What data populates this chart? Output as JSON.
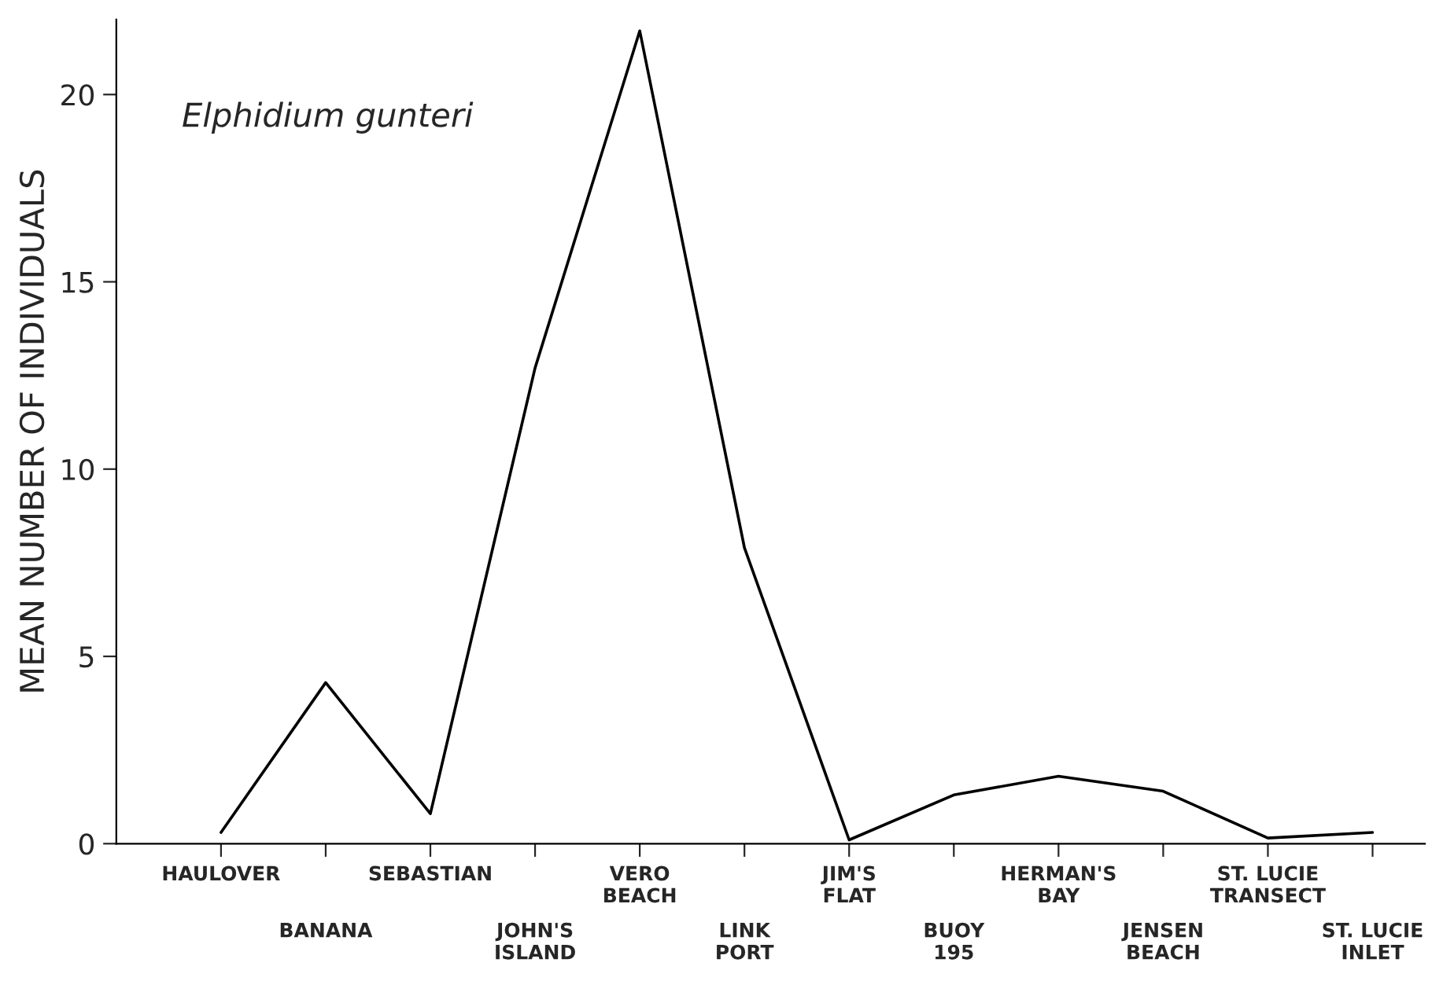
{
  "chart_data": {
    "type": "line",
    "categories": [
      "HAULOVER",
      "BANANA",
      "SEBASTIAN",
      "JOHN'S\nISLAND",
      "VERO\nBEACH",
      "LINK\nPORT",
      "JIM'S\nFLAT",
      "BUOY\n195",
      "HERMAN'S\nBAY",
      "JENSEN\nBEACH",
      "ST. LUCIE\nTRANSECT",
      "ST. LUCIE\nINLET"
    ],
    "values": [
      0.3,
      4.3,
      0.8,
      12.7,
      21.7,
      7.9,
      0.1,
      1.3,
      1.8,
      1.4,
      0.15,
      0.3
    ],
    "color": "#000000",
    "ylabel": "MEAN NUMBER OF INDIVIDUALS",
    "ylim": [
      0,
      22
    ],
    "yticks": [
      0,
      5,
      10,
      15,
      20
    ],
    "annotations": [
      "Elphidium gunteri"
    ],
    "grid": false,
    "legend": false,
    "marker": "none",
    "line_style": "solid"
  }
}
